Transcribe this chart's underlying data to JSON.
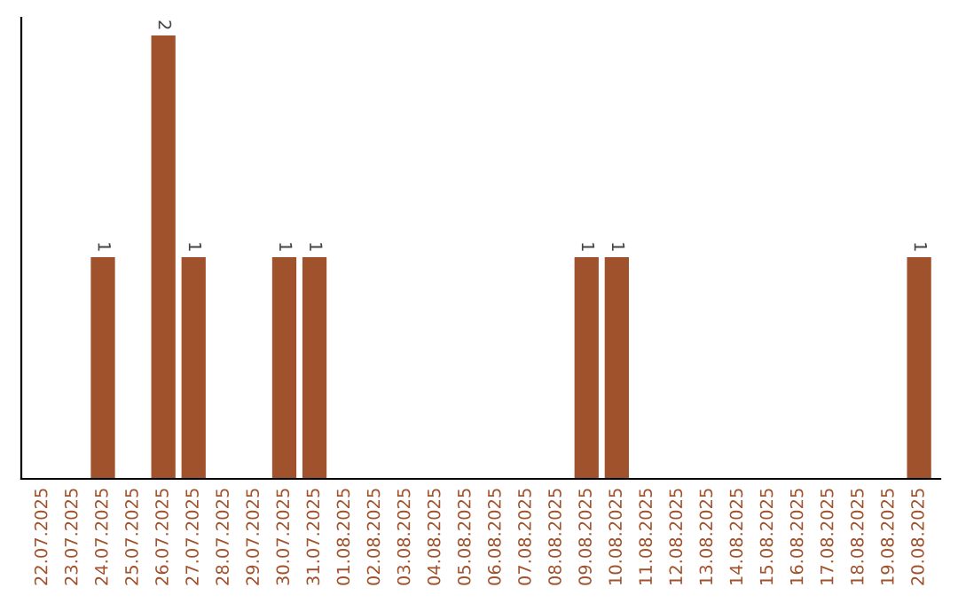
{
  "chart_data": {
    "type": "bar",
    "categories": [
      "22.07.2025",
      "23.07.2025",
      "24.07.2025",
      "25.07.2025",
      "26.07.2025",
      "27.07.2025",
      "28.07.2025",
      "29.07.2025",
      "30.07.2025",
      "31.07.2025",
      "01.08.2025",
      "02.08.2025",
      "03.08.2025",
      "04.08.2025",
      "05.08.2025",
      "06.08.2025",
      "07.08.2025",
      "08.08.2025",
      "09.08.2025",
      "10.08.2025",
      "11.08.2025",
      "12.08.2025",
      "13.08.2025",
      "14.08.2025",
      "15.08.2025",
      "16.08.2025",
      "17.08.2025",
      "18.08.2025",
      "19.08.2025",
      "20.08.2025"
    ],
    "values": [
      0,
      0,
      1,
      0,
      2,
      1,
      0,
      0,
      1,
      1,
      0,
      0,
      0,
      0,
      0,
      0,
      0,
      0,
      1,
      1,
      0,
      0,
      0,
      0,
      0,
      0,
      0,
      0,
      0,
      1
    ],
    "value_labels": [
      null,
      null,
      "1",
      null,
      "2",
      "1",
      null,
      null,
      "1",
      "1",
      null,
      null,
      null,
      null,
      null,
      null,
      null,
      null,
      "1",
      "1",
      null,
      null,
      null,
      null,
      null,
      null,
      null,
      null,
      null,
      "1"
    ],
    "color": "#a0522d",
    "tick_labels": "x",
    "grid": false,
    "legend": false
  }
}
